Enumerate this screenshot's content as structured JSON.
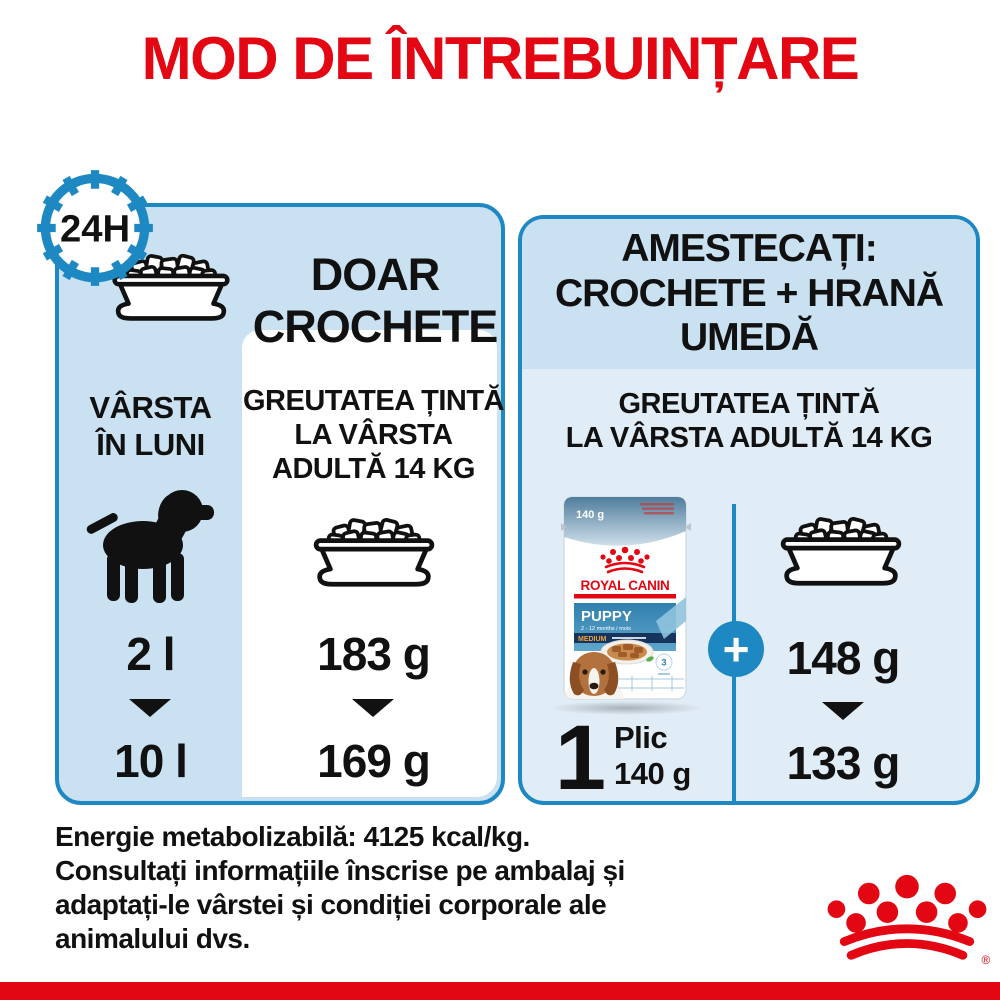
{
  "title": "MOD DE ÎNTREBUINȚARE",
  "colors": {
    "brand_red": "#e30613",
    "accent_blue": "#1e88c3",
    "panel_light_blue": "#c9e1f1",
    "panel_pale_blue": "#e0ecf6"
  },
  "kibble_panel": {
    "clock_label": "24H",
    "heading_lines": [
      "DOAR",
      "CROCHETE"
    ],
    "age_column": {
      "header_lines": [
        "VÂRSTA",
        "ÎN LUNI"
      ],
      "from": "2 l",
      "to": "10 l"
    },
    "weight_column": {
      "header_lines": [
        "GREUTATEA ȚINTĂ",
        "LA VÂRSTA",
        "ADULTĂ 14 KG"
      ],
      "from": "183 g",
      "to": "169 g"
    }
  },
  "mix_panel": {
    "heading_lines": [
      "AMESTECAȚI:",
      "CROCHETE + HRANĂ",
      "UMEDĂ"
    ],
    "weight_header_lines": [
      "GREUTATEA ȚINTĂ",
      "LA VÂRSTA ADULTĂ 14 KG"
    ],
    "plus_sign": "+",
    "pouch": {
      "weight_label": "140 g",
      "brand": "ROYAL CANIN",
      "product": "PUPPY",
      "age_range": "2 - 12 months / mois",
      "size": "MEDIUM",
      "badge_number": "3"
    },
    "portion": {
      "count": "1",
      "unit": "Plic",
      "weight": "140 g"
    },
    "wet_column": {
      "from": "148 g",
      "to": "133 g"
    }
  },
  "footer": {
    "lines": [
      "Energie metabolizabilă: 4125 kcal/kg.",
      "Consultați informațiile înscrise pe ambalaj și",
      "adaptați-le vârstei și condiției corporale ale",
      "animalului dvs."
    ]
  },
  "logo": {
    "registered_mark": "®"
  }
}
